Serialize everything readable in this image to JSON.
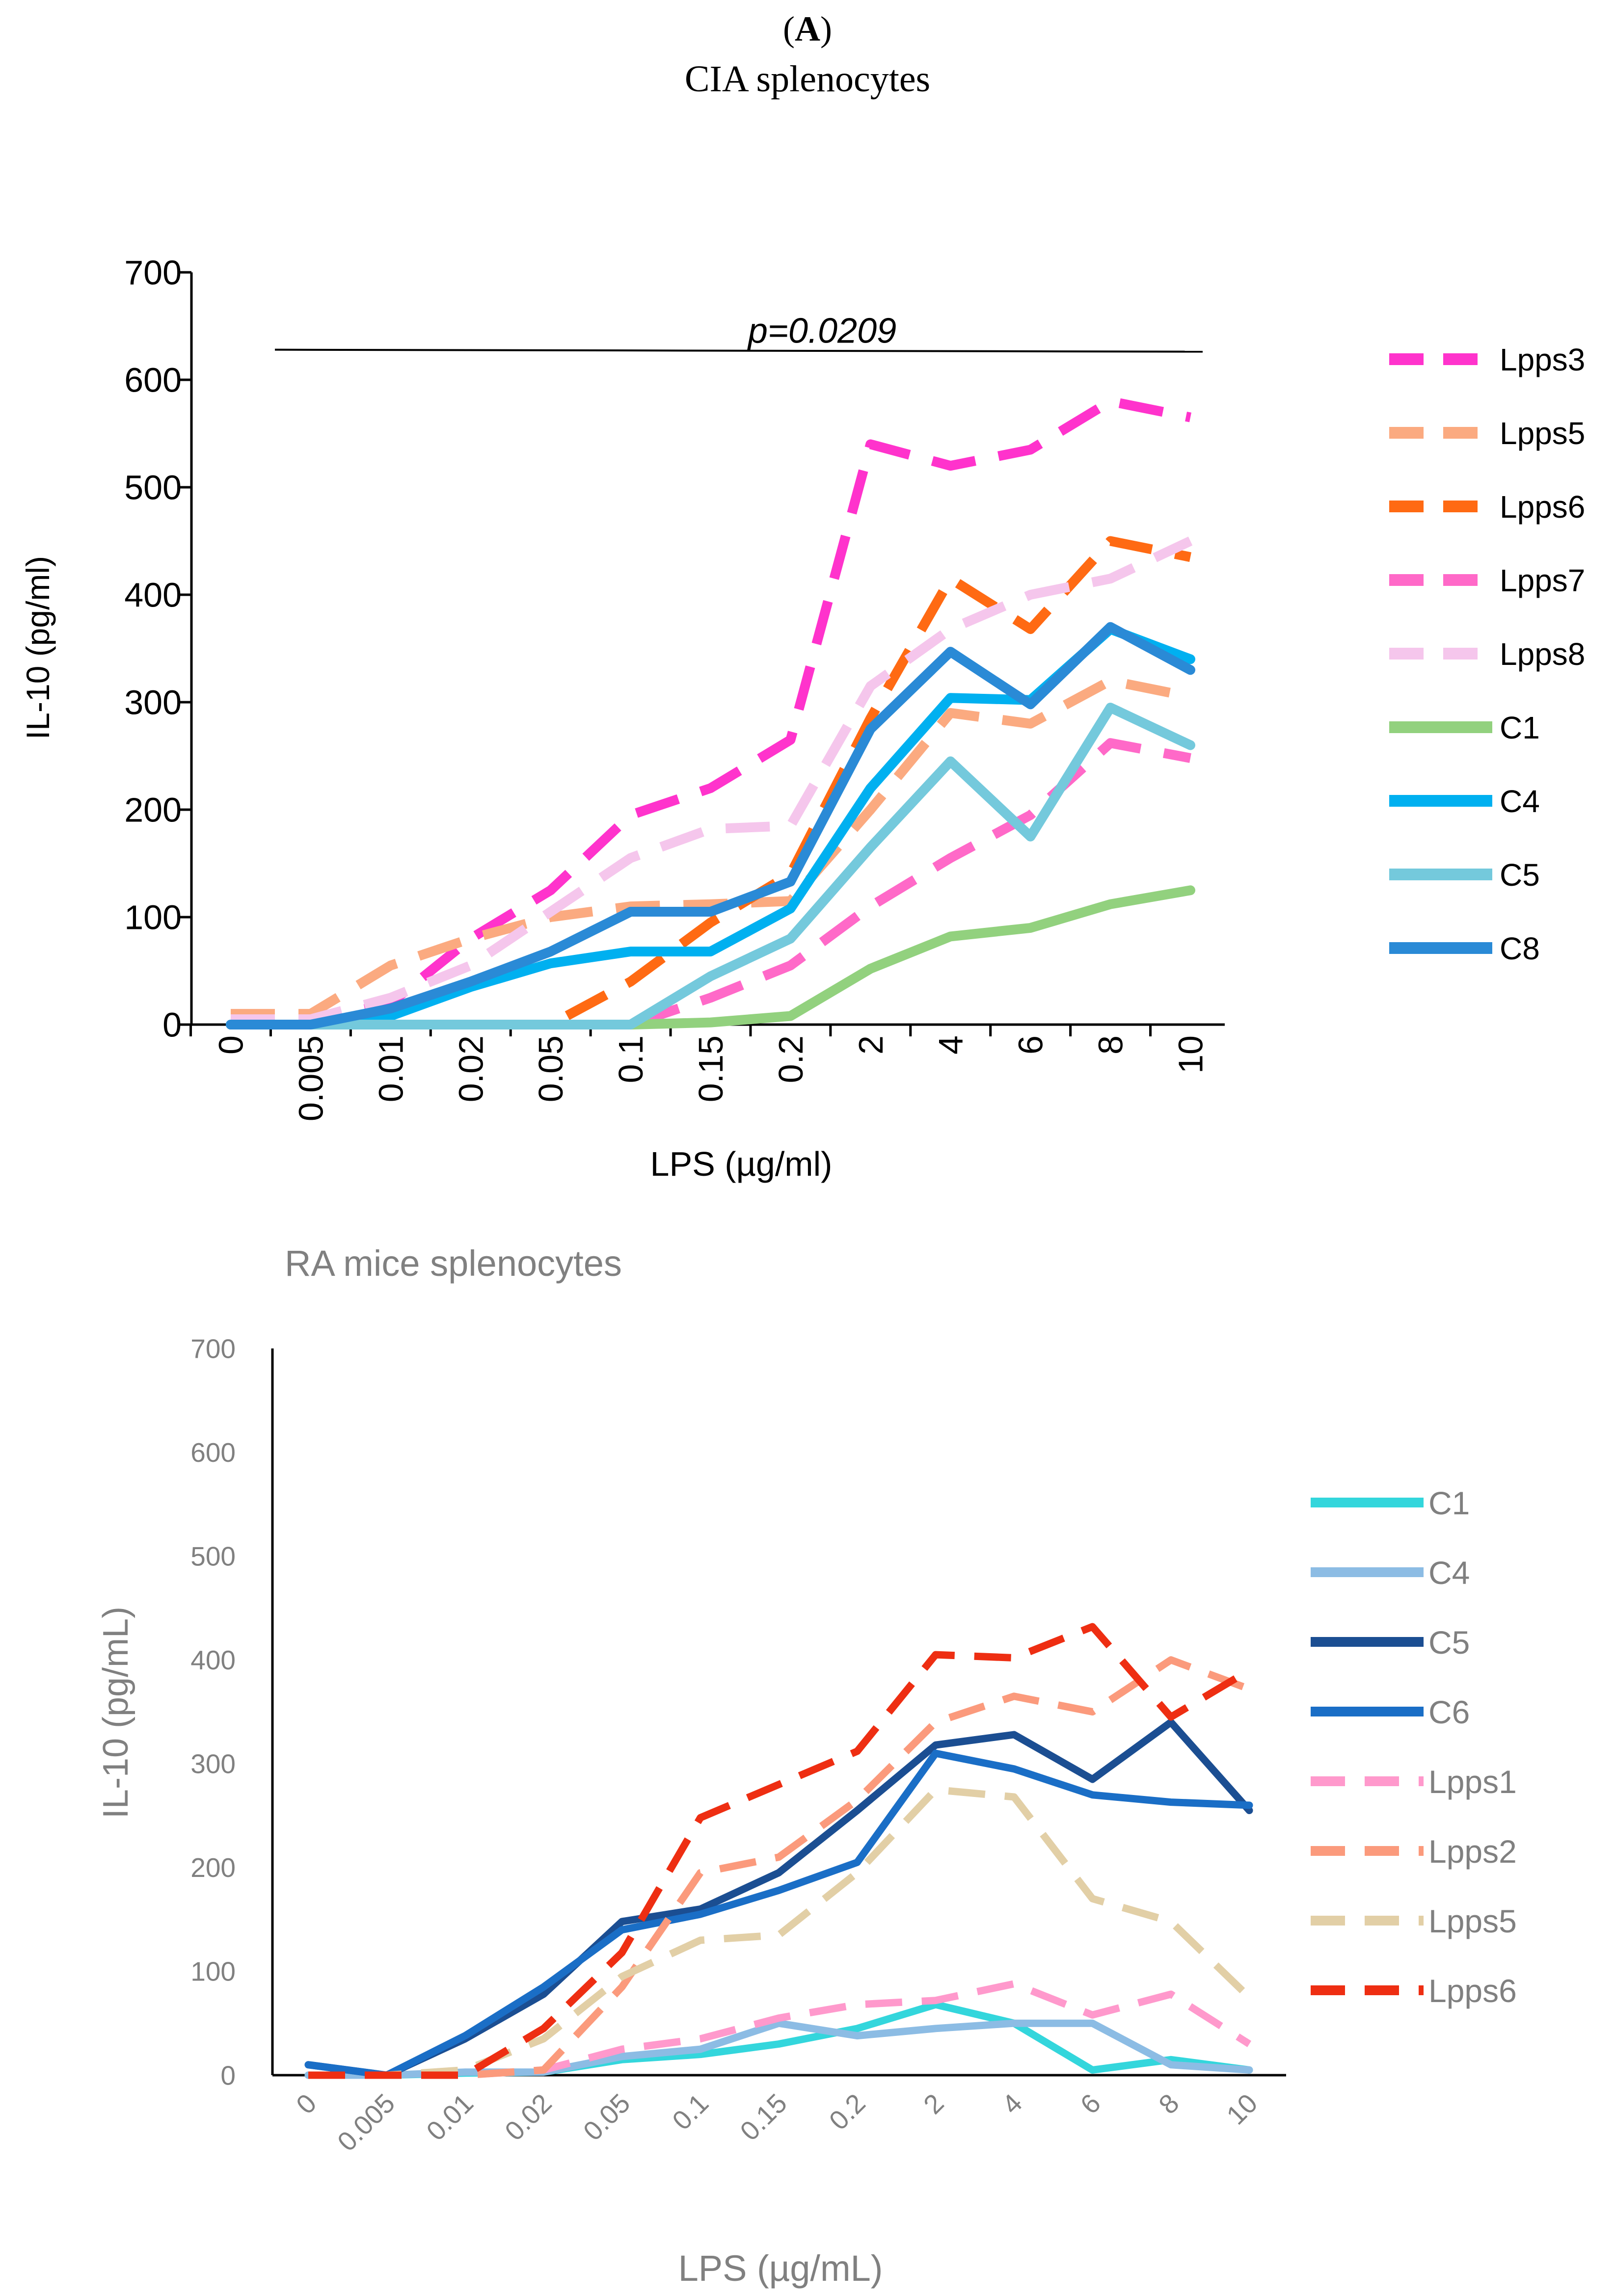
{
  "header": {
    "panel": "A",
    "title": "CIA splenocytes"
  },
  "chart_data": [
    {
      "type": "line",
      "title": "CIA splenocytes",
      "xlabel": "LPS (µg/ml)",
      "ylabel": "IL-10 (pg/ml)",
      "ylim": [
        0,
        700
      ],
      "yticks": [
        "0",
        "100",
        "200",
        "300",
        "400",
        "500",
        "600",
        "700"
      ],
      "categories": [
        "0",
        "0.005",
        "0.01",
        "0.02",
        "0.05",
        "0.1",
        "0.15",
        "0.2",
        "2",
        "4",
        "6",
        "8",
        "10"
      ],
      "annotation": {
        "text": "p=0.0209",
        "line_y": 628
      },
      "text_color": "#000000",
      "series": [
        {
          "name": "Lpps3",
          "color": "#ff33cc",
          "dashed": true,
          "values": [
            3,
            3,
            20,
            80,
            125,
            195,
            220,
            265,
            540,
            520,
            535,
            580,
            565
          ]
        },
        {
          "name": "Lpps5",
          "color": "#fbaa80",
          "dashed": true,
          "values": [
            10,
            10,
            55,
            80,
            100,
            110,
            112,
            115,
            200,
            290,
            280,
            320,
            305
          ]
        },
        {
          "name": "Lpps6",
          "color": "#ff6a13",
          "dashed": true,
          "values": [
            0,
            0,
            0,
            0,
            0,
            40,
            95,
            140,
            285,
            415,
            368,
            450,
            435
          ]
        },
        {
          "name": "Lpps7",
          "color": "#ff69c8",
          "dashed": true,
          "values": [
            0,
            0,
            0,
            0,
            0,
            0,
            25,
            55,
            110,
            155,
            195,
            262,
            248
          ]
        },
        {
          "name": "Lpps8",
          "color": "#f5c6ec",
          "dashed": true,
          "values": [
            5,
            5,
            25,
            55,
            105,
            155,
            182,
            185,
            315,
            368,
            400,
            415,
            450
          ]
        },
        {
          "name": "C1",
          "color": "#92d17e",
          "dashed": false,
          "values": [
            0,
            0,
            0,
            0,
            0,
            0,
            2,
            8,
            52,
            82,
            90,
            112,
            125
          ]
        },
        {
          "name": "C4",
          "color": "#00b0f0",
          "dashed": false,
          "values": [
            0,
            0,
            8,
            35,
            57,
            68,
            68,
            108,
            220,
            304,
            302,
            368,
            340
          ]
        },
        {
          "name": "C5",
          "color": "#74c9dc",
          "dashed": false,
          "values": [
            0,
            0,
            0,
            0,
            0,
            0,
            45,
            80,
            165,
            245,
            175,
            295,
            260
          ]
        },
        {
          "name": "C8",
          "color": "#2a8ad6",
          "dashed": false,
          "values": [
            0,
            0,
            15,
            40,
            68,
            105,
            105,
            133,
            275,
            347,
            298,
            370,
            330
          ]
        }
      ]
    },
    {
      "type": "line",
      "title": "RA mice splenocytes",
      "xlabel": "LPS (µg/mL)",
      "ylabel": "IL-10 (pg/mL)",
      "ylim": [
        0,
        700
      ],
      "yticks": [
        "0",
        "100",
        "200",
        "300",
        "400",
        "500",
        "600",
        "700"
      ],
      "categories": [
        "0",
        "0.005",
        "0.01",
        "0.02",
        "0.05",
        "0.1",
        "0.15",
        "0.2",
        "2",
        "4",
        "6",
        "8",
        "10"
      ],
      "text_color": "#808080",
      "series": [
        {
          "name": "C1",
          "color": "#33d6dc",
          "dashed": false,
          "values": [
            0,
            0,
            2,
            3,
            15,
            20,
            30,
            45,
            68,
            50,
            5,
            15,
            5
          ]
        },
        {
          "name": "C4",
          "color": "#8cbce4",
          "dashed": false,
          "values": [
            0,
            0,
            3,
            3,
            18,
            25,
            50,
            38,
            45,
            50,
            50,
            10,
            5
          ]
        },
        {
          "name": "C5",
          "color": "#1b4e92",
          "dashed": false,
          "values": [
            10,
            0,
            35,
            78,
            148,
            160,
            195,
            255,
            318,
            328,
            285,
            340,
            255
          ]
        },
        {
          "name": "C6",
          "color": "#1a6ec6",
          "dashed": false,
          "values": [
            10,
            0,
            38,
            85,
            140,
            155,
            178,
            205,
            310,
            295,
            270,
            263,
            260
          ]
        },
        {
          "name": "Lpps1",
          "color": "#ff99cc",
          "dashed": true,
          "values": [
            0,
            0,
            0,
            5,
            25,
            35,
            55,
            68,
            72,
            88,
            58,
            78,
            30
          ]
        },
        {
          "name": "Lpps2",
          "color": "#fb9a7c",
          "dashed": true,
          "values": [
            0,
            0,
            0,
            5,
            85,
            195,
            210,
            265,
            340,
            365,
            350,
            400,
            372
          ]
        },
        {
          "name": "Lpps5",
          "color": "#e2cfa6",
          "dashed": true,
          "values": [
            0,
            0,
            5,
            35,
            95,
            130,
            135,
            195,
            275,
            268,
            170,
            148,
            75
          ]
        },
        {
          "name": "Lpps6",
          "color": "#ee2e12",
          "dashed": true,
          "values": [
            0,
            0,
            0,
            45,
            118,
            248,
            280,
            312,
            405,
            402,
            432,
            345,
            390
          ]
        }
      ]
    }
  ]
}
